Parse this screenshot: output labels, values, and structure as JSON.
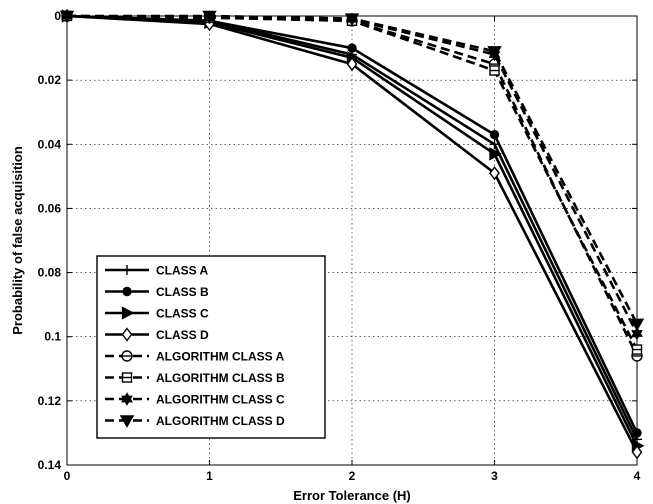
{
  "chart_data": {
    "type": "line",
    "title": "",
    "xlabel": "Error Tolerance (H)",
    "ylabel": "Probability of false acquisition",
    "x": [
      0,
      1,
      2,
      3,
      4
    ],
    "xlim": [
      0,
      4
    ],
    "ylim": [
      0,
      0.14
    ],
    "y_reversed": true,
    "grid": true,
    "legend_position": "bottom-left",
    "x_ticks": [
      "0",
      "1",
      "2",
      "3",
      "4"
    ],
    "y_ticks": [
      "0",
      "0.02",
      "0.04",
      "0.06",
      "0.08",
      "0.1",
      "0.12",
      "0.14"
    ],
    "series": [
      {
        "name": "CLASS A",
        "marker": "plus",
        "style": "solid",
        "color": "#000000",
        "values": [
          0,
          0.0015,
          0.012,
          0.04,
          0.132
        ]
      },
      {
        "name": "CLASS B",
        "marker": "circle",
        "style": "solid",
        "color": "#000000",
        "values": [
          0,
          0.0015,
          0.01,
          0.037,
          0.13
        ]
      },
      {
        "name": "CLASS C",
        "marker": "triangle-right",
        "style": "solid",
        "color": "#000000",
        "values": [
          0,
          0.002,
          0.013,
          0.043,
          0.134
        ]
      },
      {
        "name": "CLASS D",
        "marker": "diamond",
        "style": "solid",
        "color": "#000000",
        "values": [
          0,
          0.0025,
          0.015,
          0.049,
          0.136
        ]
      },
      {
        "name": "ALGORITHM CLASS A",
        "marker": "circle-cross",
        "style": "dashed",
        "color": "#000000",
        "values": [
          0,
          0.0005,
          0.0015,
          0.015,
          0.106
        ]
      },
      {
        "name": "ALGORITHM CLASS B",
        "marker": "square",
        "style": "dashed",
        "color": "#000000",
        "values": [
          0,
          0.0005,
          0.0015,
          0.017,
          0.104
        ]
      },
      {
        "name": "ALGORITHM CLASS C",
        "marker": "hexagram",
        "style": "dashed",
        "color": "#000000",
        "values": [
          0,
          0.0005,
          0.001,
          0.012,
          0.099
        ]
      },
      {
        "name": "ALGORITHM CLASS D",
        "marker": "triangle-down",
        "style": "dashed",
        "color": "#000000",
        "values": [
          0,
          0,
          0.0008,
          0.011,
          0.096
        ]
      }
    ]
  }
}
